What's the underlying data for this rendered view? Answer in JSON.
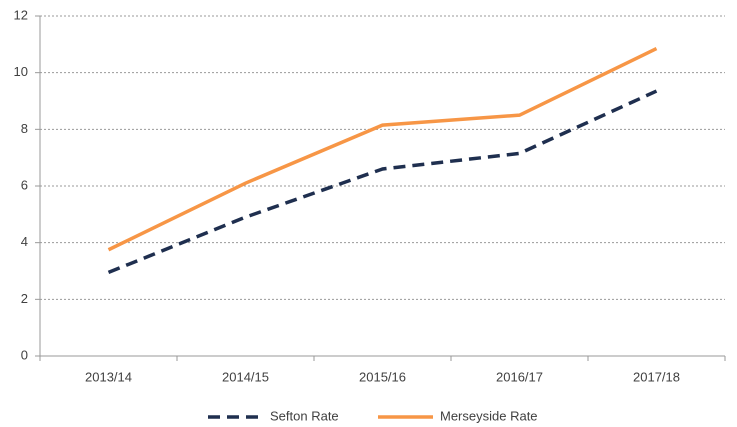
{
  "chart_data": {
    "type": "line",
    "categories": [
      "2013/14",
      "2014/15",
      "2015/16",
      "2016/17",
      "2017/18"
    ],
    "series": [
      {
        "name": "Sefton Rate",
        "color": "#1f2f4f",
        "dash": true,
        "values": [
          2.95,
          4.9,
          6.6,
          7.15,
          9.35
        ]
      },
      {
        "name": "Merseyside Rate",
        "color": "#f79646",
        "dash": false,
        "values": [
          3.75,
          6.1,
          8.15,
          8.5,
          10.85
        ]
      }
    ],
    "ylim": [
      0,
      12
    ],
    "yticks": [
      0,
      2,
      4,
      6,
      8,
      10,
      12
    ],
    "grid": true,
    "legend": "bottom"
  }
}
